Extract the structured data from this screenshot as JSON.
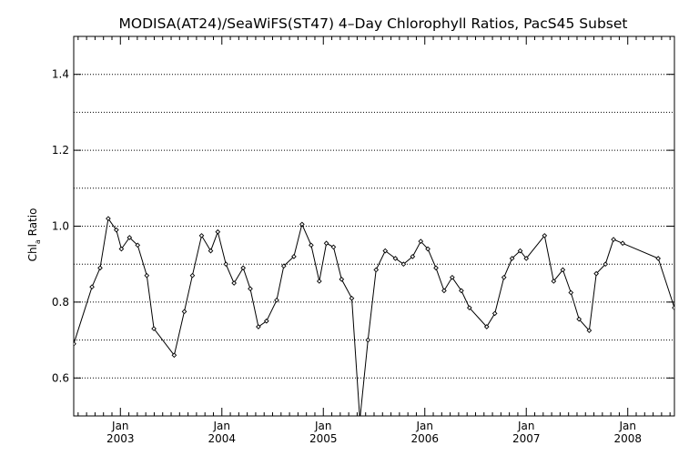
{
  "chart_data": {
    "type": "line",
    "title": "MODISA(AT24)/SeaWiFS(ST47) 4–Day Chlorophyll Ratios, PacS45 Subset",
    "ylabel": {
      "main": "Chl",
      "sub": "a",
      "rest": " Ratio"
    },
    "xlabel": "",
    "ylim": [
      0.5,
      1.5
    ],
    "yticks": [
      0.6,
      0.8,
      1.0,
      1.2,
      1.4
    ],
    "ytick_labels": [
      "0.6",
      "0.8",
      "1.0",
      "1.2",
      "1.4"
    ],
    "grid": "horizontal dotted",
    "legend": "none",
    "xlim_years": [
      2002.54,
      2008.46
    ],
    "x_major_ticks": [
      {
        "year": 2003,
        "month_label": "Jan",
        "year_label": "2003"
      },
      {
        "year": 2004,
        "month_label": "Jan",
        "year_label": "2004"
      },
      {
        "year": 2005,
        "month_label": "Jan",
        "year_label": "2005"
      },
      {
        "year": 2006,
        "month_label": "Jan",
        "year_label": "2006"
      },
      {
        "year": 2007,
        "month_label": "Jan",
        "year_label": "2007"
      },
      {
        "year": 2008,
        "month_label": "Jan",
        "year_label": "2008"
      }
    ],
    "series": [
      {
        "x": [
          2002.54,
          2002.72,
          2002.8,
          2002.88,
          2002.96,
          2003.01,
          2003.09,
          2003.17,
          2003.26,
          2003.33,
          2003.53,
          2003.63,
          2003.71,
          2003.8,
          2003.89,
          2003.96,
          2004.04,
          2004.12,
          2004.21,
          2004.28,
          2004.36,
          2004.44,
          2004.54,
          2004.61,
          2004.71,
          2004.79,
          2004.88,
          2004.96,
          2005.03,
          2005.1,
          2005.18,
          2005.28,
          2005.36,
          2005.44,
          2005.52,
          2005.61,
          2005.71,
          2005.79,
          2005.88,
          2005.96,
          2006.03,
          2006.11,
          2006.19,
          2006.27,
          2006.36,
          2006.44,
          2006.61,
          2006.69,
          2006.78,
          2006.86,
          2006.94,
          2007.0,
          2007.18,
          2007.27,
          2007.36,
          2007.44,
          2007.52,
          2007.62,
          2007.69,
          2007.78,
          2007.86,
          2007.95,
          2008.3,
          2008.46
        ],
        "y": [
          0.69,
          0.84,
          0.89,
          1.02,
          0.99,
          0.94,
          0.97,
          0.95,
          0.87,
          0.73,
          0.66,
          0.775,
          0.87,
          0.975,
          0.935,
          0.985,
          0.9,
          0.85,
          0.89,
          0.835,
          0.735,
          0.75,
          0.805,
          0.895,
          0.92,
          1.005,
          0.95,
          0.855,
          0.955,
          0.945,
          0.86,
          0.81,
          0.49,
          0.7,
          0.885,
          0.935,
          0.915,
          0.9,
          0.92,
          0.96,
          0.94,
          0.89,
          0.83,
          0.865,
          0.83,
          0.785,
          0.735,
          0.77,
          0.865,
          0.915,
          0.935,
          0.915,
          0.975,
          0.855,
          0.885,
          0.825,
          0.755,
          0.725,
          0.875,
          0.9,
          0.965,
          0.955,
          0.915,
          0.785
        ]
      }
    ]
  }
}
